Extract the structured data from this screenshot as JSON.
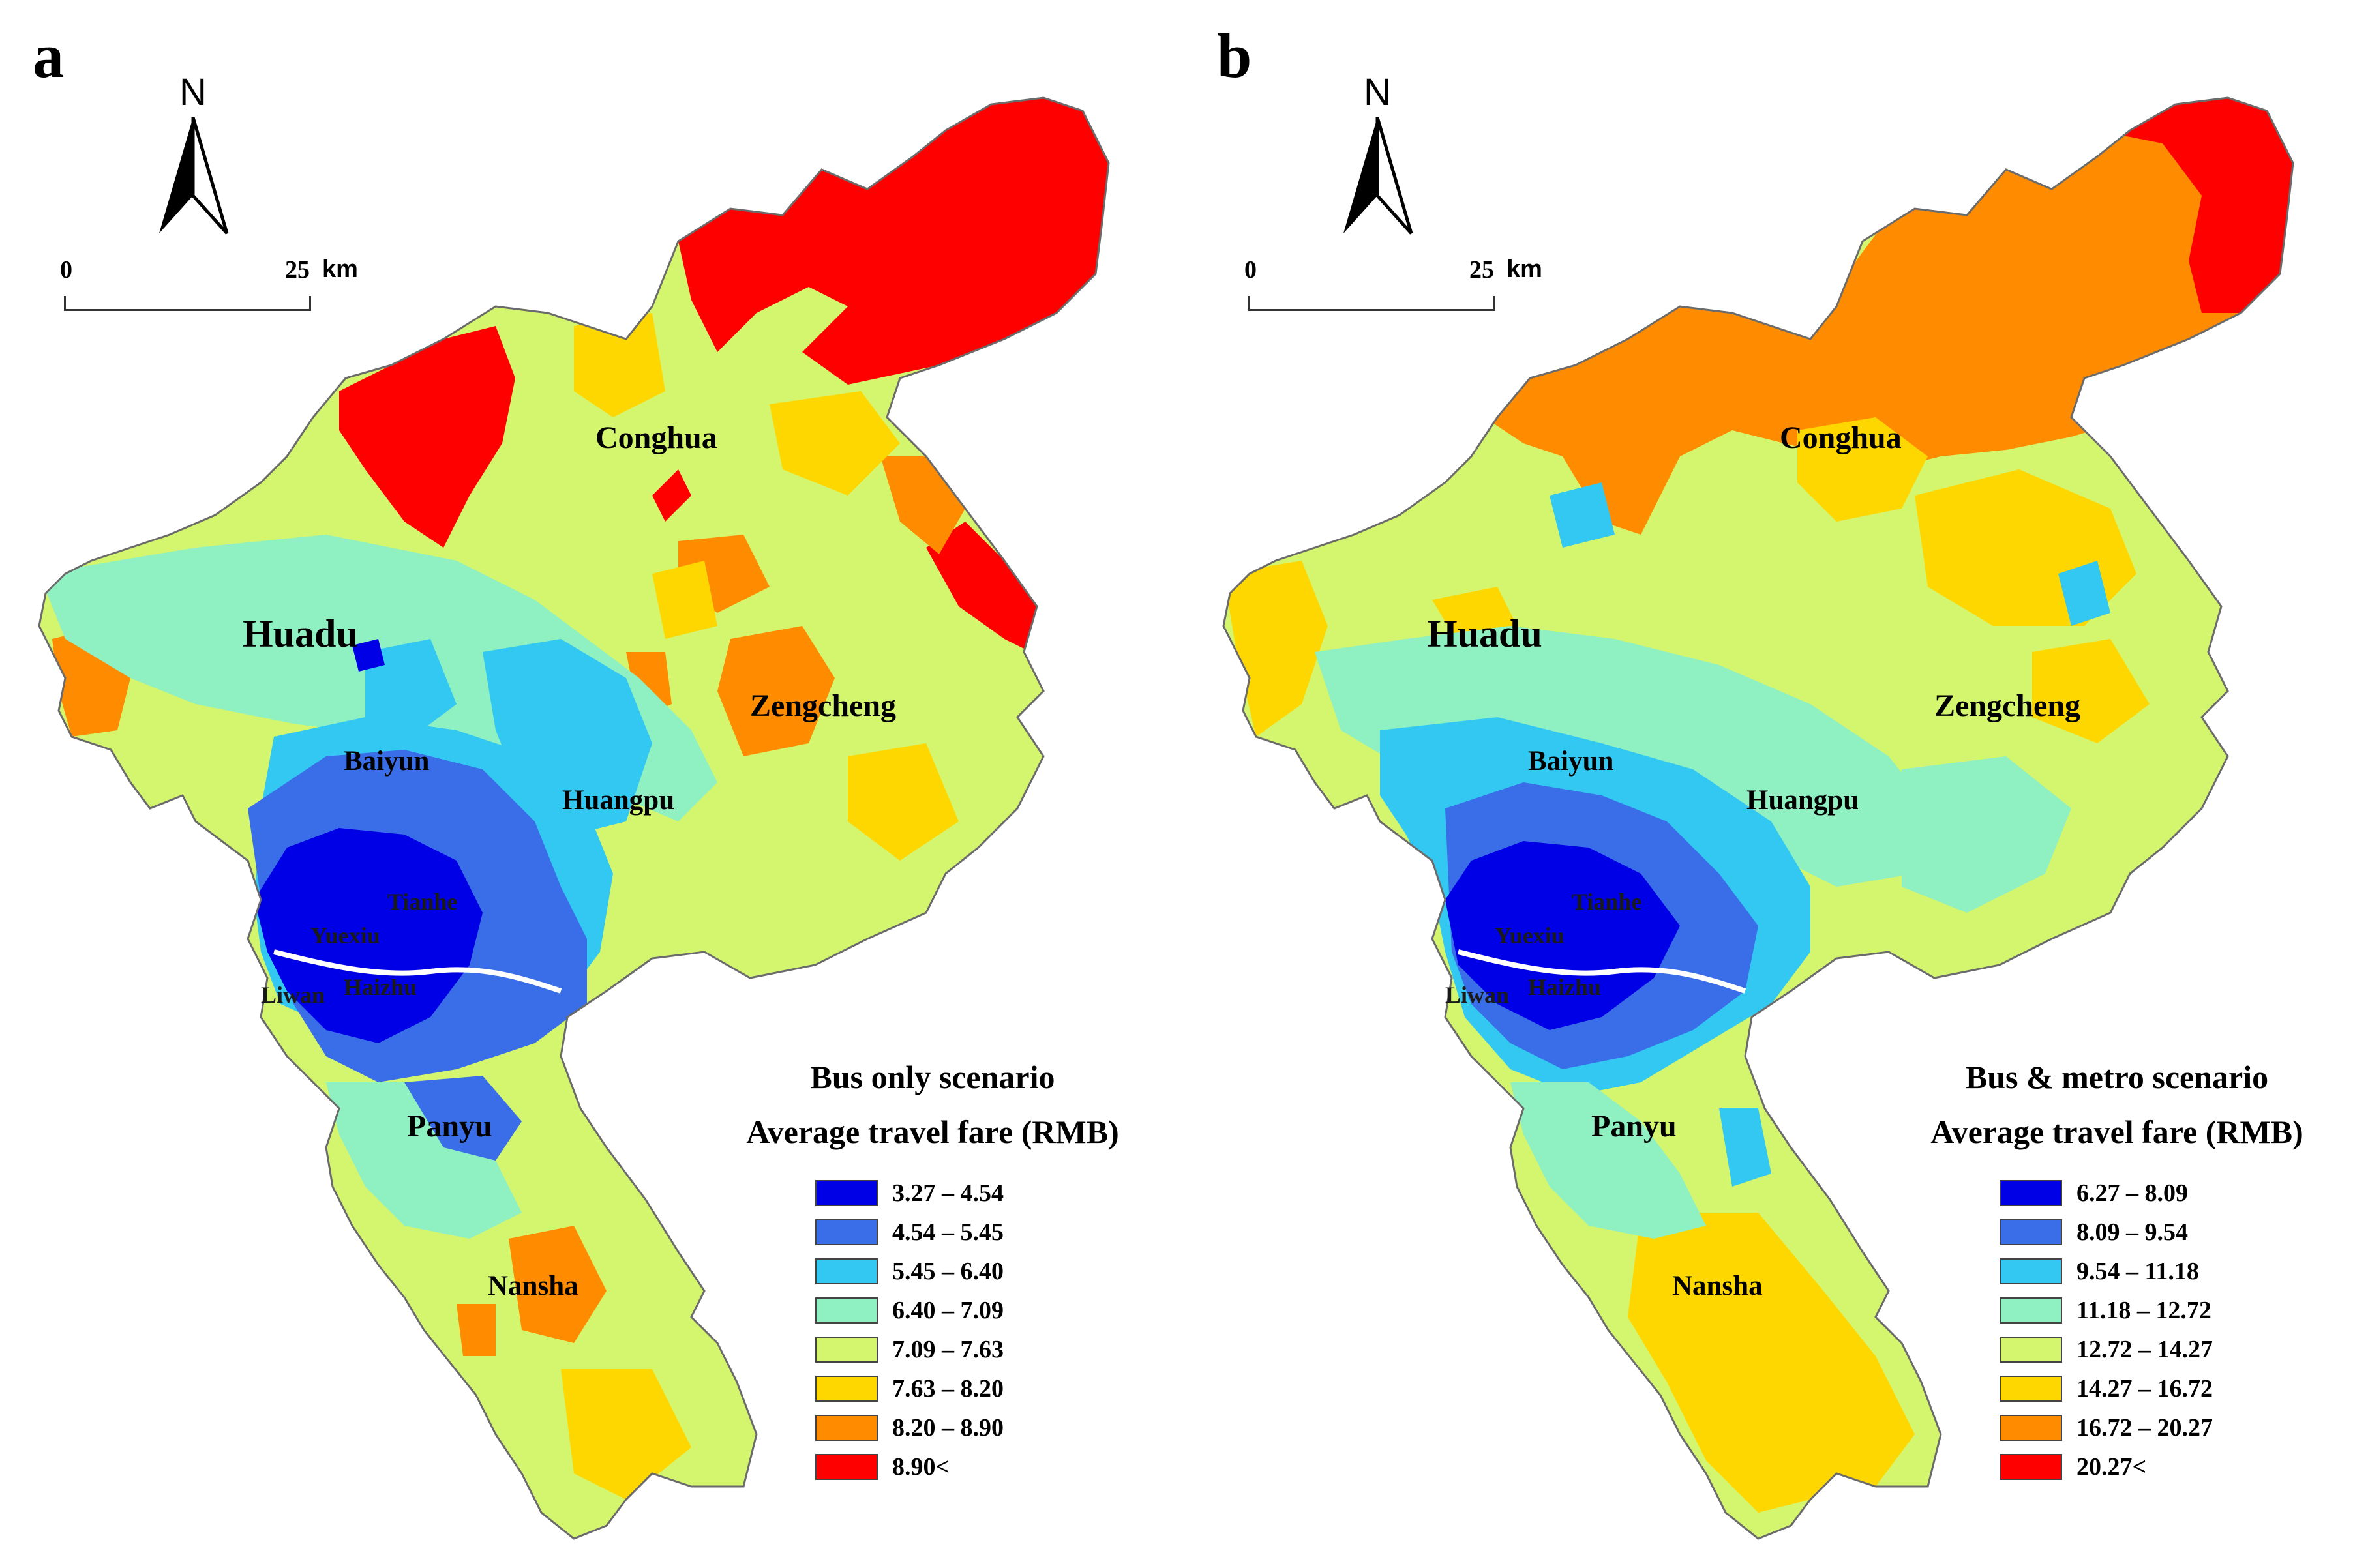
{
  "figure": {
    "panels": [
      {
        "id": "a",
        "letter": "a",
        "north": "N",
        "scale": {
          "zero": "0",
          "max": "25",
          "unit": "km"
        },
        "districts": [
          "Conghua",
          "Huadu",
          "Zengcheng",
          "Baiyun",
          "Huangpu",
          "Tianhe",
          "Yuexiu",
          "Liwan",
          "Haizhu",
          "Panyu",
          "Nansha"
        ],
        "legend": {
          "title1": "Bus only scenario",
          "title2": "Average travel fare (RMB)",
          "classes": [
            {
              "label": "3.27 – 4.54",
              "color": "#0000e6"
            },
            {
              "label": "4.54 – 5.45",
              "color": "#3a6ee8"
            },
            {
              "label": "5.45 – 6.40",
              "color": "#33c8f2"
            },
            {
              "label": "6.40 – 7.09",
              "color": "#8ff0c2"
            },
            {
              "label": "7.09 – 7.63",
              "color": "#d4f56e"
            },
            {
              "label": "7.63 – 8.20",
              "color": "#ffd700"
            },
            {
              "label": "8.20 – 8.90",
              "color": "#ff8c00"
            },
            {
              "label": "8.90<",
              "color": "#ff0000"
            }
          ]
        }
      },
      {
        "id": "b",
        "letter": "b",
        "north": "N",
        "scale": {
          "zero": "0",
          "max": "25",
          "unit": "km"
        },
        "districts": [
          "Conghua",
          "Huadu",
          "Zengcheng",
          "Baiyun",
          "Huangpu",
          "Tianhe",
          "Yuexiu",
          "Liwan",
          "Haizhu",
          "Panyu",
          "Nansha"
        ],
        "legend": {
          "title1": "Bus & metro scenario",
          "title2": "Average travel fare (RMB)",
          "classes": [
            {
              "label": "6.27 – 8.09",
              "color": "#0000e6"
            },
            {
              "label": "8.09 – 9.54",
              "color": "#3a6ee8"
            },
            {
              "label": "9.54 – 11.18",
              "color": "#33c8f2"
            },
            {
              "label": "11.18 – 12.72",
              "color": "#8ff0c2"
            },
            {
              "label": "12.72 – 14.27",
              "color": "#d4f56e"
            },
            {
              "label": "14.27 – 16.72",
              "color": "#ffd700"
            },
            {
              "label": "16.72 – 20.27",
              "color": "#ff8c00"
            },
            {
              "label": "20.27<",
              "color": "#ff0000"
            }
          ]
        }
      }
    ]
  }
}
